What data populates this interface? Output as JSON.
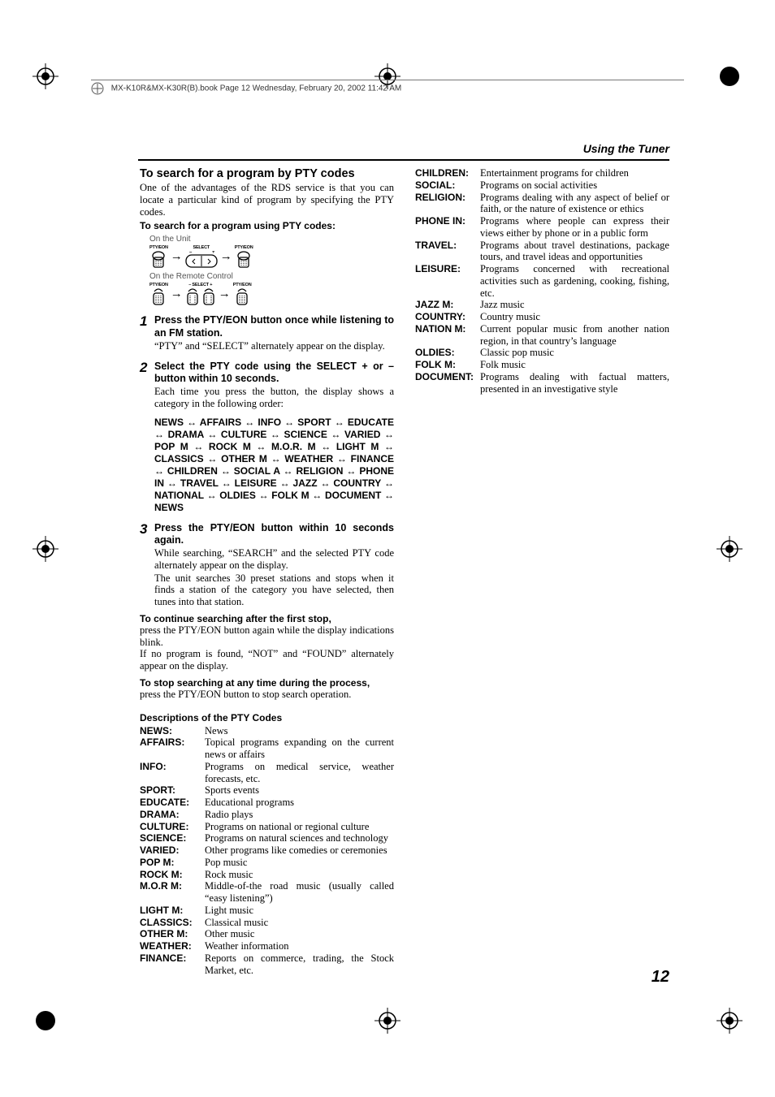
{
  "book_header": "MX-K10R&MX-K30R(B).book  Page 12  Wednesday, February 20, 2002  11:42 AM",
  "section_header": "Using the Tuner",
  "page_number": "12",
  "main": {
    "heading": "To search for a program by PTY codes",
    "intro": "One of the advantages of the RDS service is that you can locate a particular kind of program by specifying the PTY codes.",
    "subhead": "To search for a program using PTY codes:",
    "unit_caption": "On the Unit",
    "remote_caption": "On the Remote Control",
    "btn_pty": "PTY/EON",
    "btn_sel": "SELECT",
    "btn_sel_pm": "– SELECT +",
    "btn_sel_minus": "–",
    "btn_sel_plus": "+",
    "steps": [
      {
        "num": "1",
        "lead": "Press the PTY/EON button once while listening to an FM station.",
        "sub": "“PTY” and “SELECT” alternately appear on the display."
      },
      {
        "num": "2",
        "lead": "Select the PTY code using the SELECT + or – button within 10 seconds.",
        "sub": "Each time you press the button, the display shows a category in the following order:"
      },
      {
        "num": "3",
        "lead": "Press the PTY/EON button within 10 seconds again.",
        "sub1": "While searching, “SEARCH” and the selected PTY code alternately appear on the display.",
        "sub2": "The unit searches 30 preset stations and stops when it finds a station of the category you have selected, then tunes into that station."
      }
    ],
    "codes_sequence": "NEWS ↔ AFFAIRS ↔ INFO ↔ SPORT ↔ EDUCATE ↔ DRAMA ↔ CULTURE ↔ SCIENCE ↔ VARIED ↔ POP M ↔ ROCK M ↔ M.O.R. M ↔ LIGHT M ↔ CLASSICS ↔ OTHER M ↔ WEATHER ↔ FINANCE ↔ CHILDREN ↔ SOCIAL A ↔ RELIGION ↔ PHONE IN ↔ TRAVEL ↔ LEISURE ↔ JAZZ ↔ COUNTRY ↔ NATIONAL ↔ OLDIES ↔ FOLK M ↔ DOCUMENT ↔ NEWS",
    "continue_hdr": "To continue searching after the first stop,",
    "continue_body": "press the PTY/EON button again while the display indications blink.",
    "notfound": "If no program is found, “NOT” and “FOUND” alternately appear on the display.",
    "stop_hdr": "To stop searching at any time during the process,",
    "stop_body": "press the PTY/EON button to stop search operation.",
    "desc_hdr": "Descriptions of the PTY Codes"
  },
  "pty_left": [
    {
      "k": "NEWS:",
      "v": "News"
    },
    {
      "k": "AFFAIRS:",
      "v": "Topical programs expanding on the current news or affairs"
    },
    {
      "k": "INFO:",
      "v": "Programs on medical service, weather forecasts, etc."
    },
    {
      "k": "SPORT:",
      "v": "Sports events"
    },
    {
      "k": "EDUCATE:",
      "v": "Educational programs"
    },
    {
      "k": "DRAMA:",
      "v": "Radio plays"
    },
    {
      "k": "CULTURE:",
      "v": "Programs on national or regional culture"
    },
    {
      "k": "SCIENCE:",
      "v": "Programs on natural sciences and technology"
    },
    {
      "k": "VARIED:",
      "v": "Other programs like comedies or ceremonies"
    },
    {
      "k": "POP M:",
      "v": "Pop music"
    },
    {
      "k": "ROCK M:",
      "v": "Rock music"
    },
    {
      "k": "M.O.R M:",
      "v": "Middle-of-the road music (usually called “easy listening”)"
    },
    {
      "k": "LIGHT M:",
      "v": "Light music"
    },
    {
      "k": "CLASSICS:",
      "v": "Classical music"
    },
    {
      "k": "OTHER M:",
      "v": "Other music"
    },
    {
      "k": "WEATHER:",
      "v": "Weather information"
    },
    {
      "k": "FINANCE:",
      "v": "Reports on commerce, trading, the Stock Market, etc."
    }
  ],
  "pty_right": [
    {
      "k": "CHILDREN:",
      "v": "Entertainment programs for children"
    },
    {
      "k": "SOCIAL:",
      "v": "Programs on social activities"
    },
    {
      "k": "RELIGION:",
      "v": "Programs dealing with any aspect of belief or faith, or the nature of existence or ethics"
    },
    {
      "k": "PHONE IN:",
      "v": "Programs where people can express their views either by phone or in a public form"
    },
    {
      "k": "TRAVEL:",
      "v": "Programs about travel destinations, package tours, and travel ideas and opportunities"
    },
    {
      "k": "LEISURE:",
      "v": "Programs concerned with recreational activities such as gardening, cooking, fishing, etc."
    },
    {
      "k": "JAZZ M:",
      "v": "Jazz music"
    },
    {
      "k": "COUNTRY:",
      "v": "Country music"
    },
    {
      "k": "NATION M:",
      "v": "Current popular music from another nation region, in that country’s language"
    },
    {
      "k": "OLDIES:",
      "v": "Classic pop music"
    },
    {
      "k": "FOLK M:",
      "v": "Folk music"
    },
    {
      "k": "DOCUMENT:",
      "v": "Programs dealing with factual matters, presented in an investigative style"
    }
  ]
}
